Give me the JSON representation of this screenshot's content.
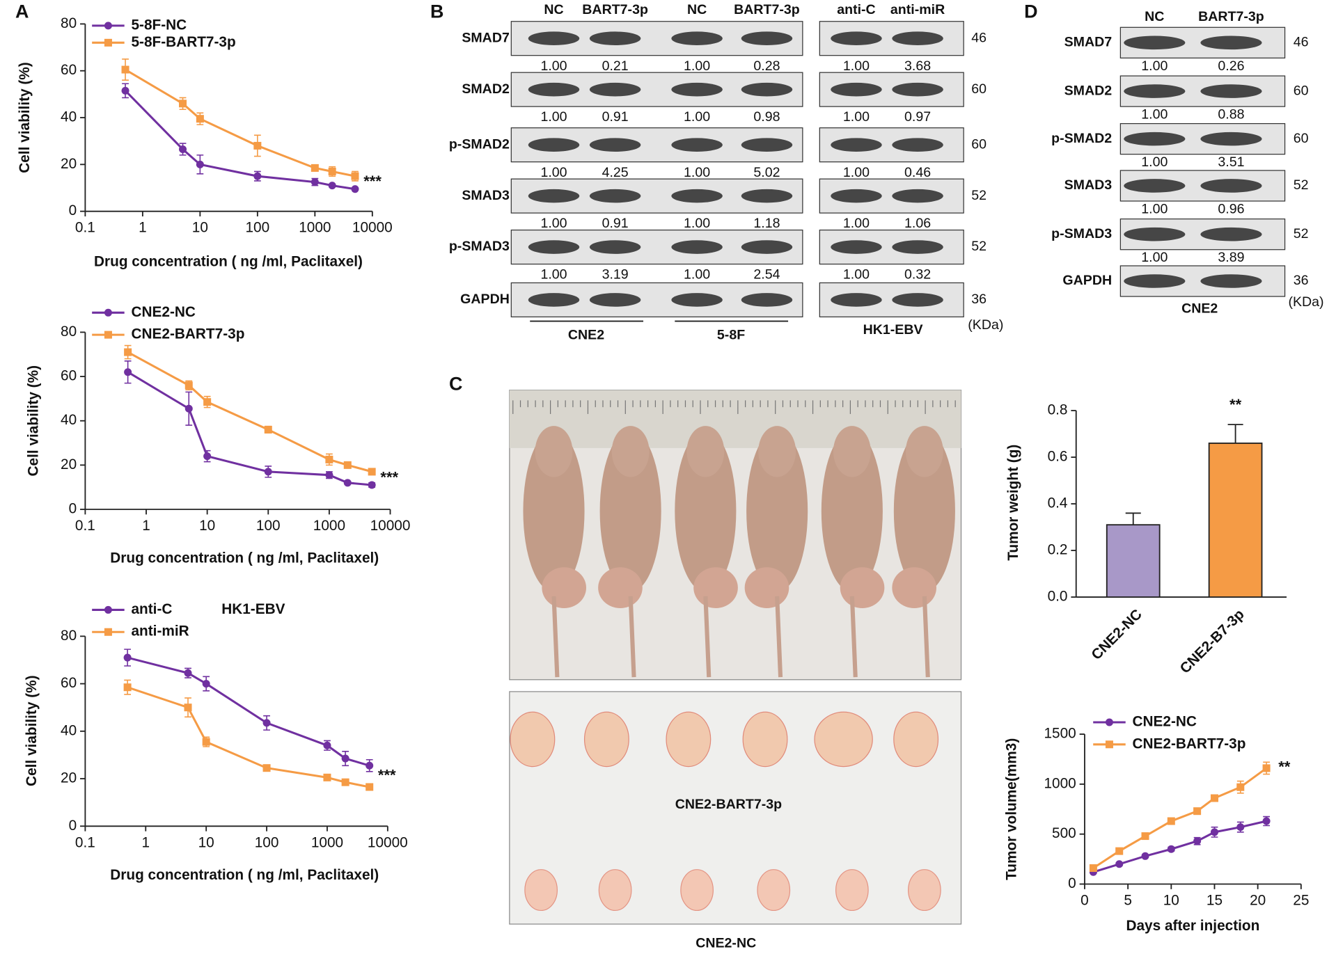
{
  "panels": {
    "a": "A",
    "b": "B",
    "c": "C",
    "d": "D"
  },
  "chart_data": [
    {
      "type": "line",
      "xscale": "log",
      "xlabel": "Drug concentration ( ng /ml, Paclitaxel)",
      "ylabel": "Cell viability (%)",
      "x": [
        0.5,
        5,
        10,
        100,
        1000,
        2000,
        5000
      ],
      "xlim": [
        0.1,
        10000
      ],
      "xticks": [
        0.1,
        1,
        10,
        100,
        1000,
        10000
      ],
      "ylim": [
        0,
        80
      ],
      "yticks": [
        0,
        20,
        40,
        60,
        80
      ],
      "annotation": "***",
      "series": [
        {
          "name": "5-8F-NC",
          "color": "#7030a0",
          "marker": "circle",
          "values": [
            51.5,
            26.5,
            20,
            15,
            12.5,
            11,
            9.5
          ],
          "errors": [
            3,
            2.5,
            4,
            2,
            1.5,
            0.5,
            0.5
          ]
        },
        {
          "name": "5-8F-BART7-3p",
          "color": "#f59b45",
          "marker": "square",
          "values": [
            60.5,
            46,
            39.5,
            28,
            18.5,
            17,
            15
          ],
          "errors": [
            4.5,
            2.5,
            2.5,
            4.5,
            1,
            2,
            2
          ]
        }
      ]
    },
    {
      "type": "line",
      "xscale": "log",
      "xlabel": "Drug concentration ( ng /ml, Paclitaxel)",
      "ylabel": "Cell viability (%)",
      "x": [
        0.5,
        5,
        10,
        100,
        1000,
        2000,
        5000
      ],
      "xlim": [
        0.1,
        10000
      ],
      "xticks": [
        0.1,
        1,
        10,
        100,
        1000,
        10000
      ],
      "ylim": [
        0,
        80
      ],
      "yticks": [
        0,
        20,
        40,
        60,
        80
      ],
      "annotation": "***",
      "series": [
        {
          "name": "CNE2-NC",
          "color": "#7030a0",
          "marker": "circle",
          "values": [
            62,
            45.5,
            24,
            17,
            15.5,
            12,
            11
          ],
          "errors": [
            5,
            7.5,
            2.5,
            2.5,
            1.5,
            0.5,
            1
          ]
        },
        {
          "name": "CNE2-BART7-3p",
          "color": "#f59b45",
          "marker": "square",
          "values": [
            71,
            56,
            48.5,
            36,
            22.5,
            20,
            17
          ],
          "errors": [
            3,
            2,
            2.5,
            1.5,
            2.5,
            1,
            0.5
          ]
        }
      ]
    },
    {
      "type": "line",
      "xscale": "log",
      "xlabel": "Drug concentration ( ng /ml, Paclitaxel)",
      "ylabel": "Cell viability (%)",
      "subtitle": "HK1-EBV",
      "x": [
        0.5,
        5,
        10,
        100,
        1000,
        2000,
        5000
      ],
      "xlim": [
        0.1,
        10000
      ],
      "xticks": [
        0.1,
        1,
        10,
        100,
        1000,
        10000
      ],
      "ylim": [
        0,
        80
      ],
      "yticks": [
        0,
        20,
        40,
        60,
        80
      ],
      "annotation": "***",
      "series": [
        {
          "name": "anti-C",
          "color": "#7030a0",
          "marker": "circle",
          "values": [
            71,
            64.5,
            60,
            43.5,
            34,
            28.5,
            25.5
          ],
          "errors": [
            3.5,
            2,
            3,
            3,
            2,
            3,
            2.5
          ]
        },
        {
          "name": "anti-miR",
          "color": "#f59b45",
          "marker": "square",
          "values": [
            58.5,
            50,
            35.5,
            24.5,
            20.5,
            18.5,
            16.5
          ],
          "errors": [
            3,
            4,
            2,
            0.5,
            0.5,
            0.5,
            0.5
          ]
        }
      ]
    },
    {
      "type": "bar",
      "ylabel": "Tumor weight (g)",
      "categories": [
        "CNE2-NC",
        "CNE2-B7-3p"
      ],
      "values": [
        0.31,
        0.66
      ],
      "errors": [
        0.05,
        0.08
      ],
      "colors": [
        "#a898c8",
        "#f59b45"
      ],
      "ylim": [
        0,
        0.8
      ],
      "yticks": [
        {
          "value": 0,
          "label": "0.0"
        },
        0.2,
        0.4,
        0.6,
        0.8
      ],
      "annotation": "**"
    },
    {
      "type": "line",
      "xlabel": "Days after injection",
      "ylabel": "Tumor volume(mm3)",
      "x": [
        1,
        4,
        7,
        10,
        13,
        15,
        18,
        21
      ],
      "xlim": [
        0,
        25
      ],
      "xticks": [
        0,
        5,
        10,
        15,
        20,
        25
      ],
      "ylim": [
        0,
        1500
      ],
      "yticks": [
        0,
        500,
        1000,
        1500
      ],
      "annotation": "**",
      "series": [
        {
          "name": "CNE2-NC",
          "color": "#7030a0",
          "marker": "circle",
          "values": [
            120,
            200,
            280,
            350,
            430,
            520,
            570,
            630
          ],
          "errors": [
            10,
            15,
            15,
            20,
            35,
            50,
            50,
            45
          ]
        },
        {
          "name": "CNE2-BART7-3p",
          "color": "#f59b45",
          "marker": "square",
          "values": [
            160,
            330,
            480,
            630,
            730,
            860,
            970,
            1160
          ],
          "errors": [
            10,
            20,
            25,
            25,
            25,
            30,
            60,
            60
          ]
        }
      ]
    }
  ],
  "blot_b": {
    "lanes": [
      "NC",
      "BART7-3p",
      "NC",
      "BART7-3p",
      "anti-C",
      "anti-miR"
    ],
    "rows": [
      {
        "protein": "SMAD7",
        "ratios": [
          "1.00",
          "0.21",
          "1.00",
          "0.28",
          "1.00",
          "3.68"
        ],
        "kda": 46
      },
      {
        "protein": "SMAD2",
        "ratios": [
          "1.00",
          "0.91",
          "1.00",
          "0.98",
          "1.00",
          "0.97"
        ],
        "kda": 60
      },
      {
        "protein": "p-SMAD2",
        "ratios": [
          "1.00",
          "4.25",
          "1.00",
          "5.02",
          "1.00",
          "0.46"
        ],
        "kda": 60
      },
      {
        "protein": "SMAD3",
        "ratios": [
          "1.00",
          "0.91",
          "1.00",
          "1.18",
          "1.00",
          "1.06"
        ],
        "kda": 52
      },
      {
        "protein": "p-SMAD3",
        "ratios": [
          "1.00",
          "3.19",
          "1.00",
          "2.54",
          "1.00",
          "0.32"
        ],
        "kda": 52
      },
      {
        "protein": "GAPDH",
        "kda": 36
      }
    ],
    "groups": [
      "CNE2",
      "5-8F",
      "HK1-EBV"
    ],
    "unit": "(KDa)"
  },
  "blot_d": {
    "lanes": [
      "NC",
      "BART7-3p"
    ],
    "rows": [
      {
        "protein": "SMAD7",
        "ratios": [
          "1.00",
          "0.26"
        ],
        "kda": 46
      },
      {
        "protein": "SMAD2",
        "ratios": [
          "1.00",
          "0.88"
        ],
        "kda": 60
      },
      {
        "protein": "p-SMAD2",
        "ratios": [
          "1.00",
          "3.51"
        ],
        "kda": 60
      },
      {
        "protein": "SMAD3",
        "ratios": [
          "1.00",
          "0.96"
        ],
        "kda": 52
      },
      {
        "protein": "p-SMAD3",
        "ratios": [
          "1.00",
          "3.89"
        ],
        "kda": 52
      },
      {
        "protein": "GAPDH",
        "kda": 36
      }
    ],
    "group": "CNE2",
    "unit": "(KDa)"
  },
  "photos": {
    "tumor_labels": [
      "CNE2-BART7-3p",
      "CNE2-NC"
    ]
  }
}
